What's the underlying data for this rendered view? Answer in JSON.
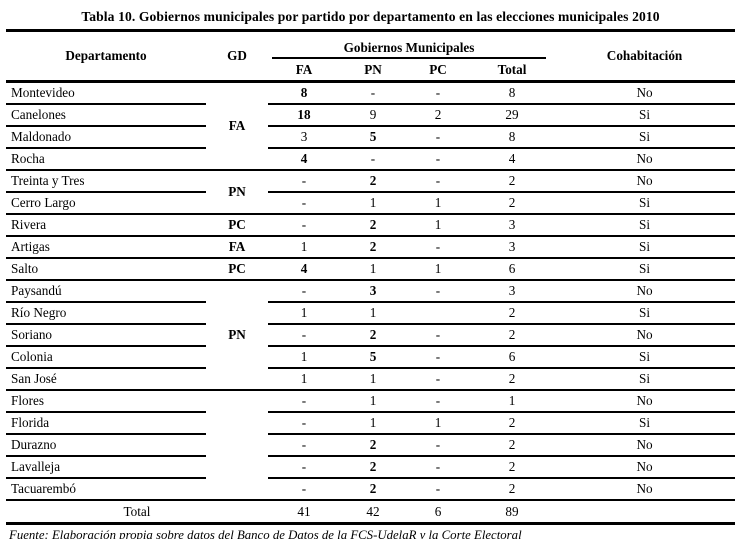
{
  "title": "Tabla 10. Gobiernos municipales por partido por departamento en las elecciones municipales 2010",
  "header": {
    "departamento": "Departamento",
    "gd": "GD",
    "gobiernos_municipales": "Gobiernos Municipales",
    "fa": "FA",
    "pn": "PN",
    "pc": "PC",
    "total": "Total",
    "cohabitacion": "Cohabitación"
  },
  "groups": [
    {
      "gd": "FA",
      "rows": [
        {
          "dep": "Montevideo",
          "fa": "8",
          "pn": "-",
          "pc": "-",
          "tot": "8",
          "coh": "No",
          "bold": "fa"
        },
        {
          "dep": "Canelones",
          "fa": "18",
          "pn": "9",
          "pc": "2",
          "tot": "29",
          "coh": "Si",
          "bold": "fa"
        },
        {
          "dep": "Maldonado",
          "fa": "3",
          "pn": "5",
          "pc": "-",
          "tot": "8",
          "coh": "Si",
          "bold": "pn"
        },
        {
          "dep": "Rocha",
          "fa": "4",
          "pn": "-",
          "pc": "-",
          "tot": "4",
          "coh": "No",
          "bold": "fa"
        }
      ]
    },
    {
      "gd": "PN",
      "rows": [
        {
          "dep": "Treinta y Tres",
          "fa": "-",
          "pn": "2",
          "pc": "-",
          "tot": "2",
          "coh": "No",
          "bold": "pn"
        },
        {
          "dep": "Cerro Largo",
          "fa": "-",
          "pn": "1",
          "pc": "1",
          "tot": "2",
          "coh": "Si",
          "bold": null
        }
      ]
    },
    {
      "gd": "PC",
      "rows": [
        {
          "dep": "Rivera",
          "fa": "-",
          "pn": "2",
          "pc": "1",
          "tot": "3",
          "coh": "Si",
          "bold": "pn"
        }
      ]
    },
    {
      "gd": "FA",
      "rows": [
        {
          "dep": "Artigas",
          "fa": "1",
          "pn": "2",
          "pc": "-",
          "tot": "3",
          "coh": "Si",
          "bold": "pn"
        }
      ]
    },
    {
      "gd": "PC",
      "rows": [
        {
          "dep": "Salto",
          "fa": "4",
          "pn": "1",
          "pc": "1",
          "tot": "6",
          "coh": "Si",
          "bold": "fa"
        }
      ]
    },
    {
      "gd": "PN",
      "rows": [
        {
          "dep": "Paysandú",
          "fa": "-",
          "pn": "3",
          "pc": "-",
          "tot": "3",
          "coh": "No",
          "bold": "pn"
        },
        {
          "dep": "Río Negro",
          "fa": "1",
          "pn": "1",
          "pc": "",
          "tot": "2",
          "coh": "Si",
          "bold": null
        },
        {
          "dep": "Soriano",
          "fa": "-",
          "pn": "2",
          "pc": "-",
          "tot": "2",
          "coh": "No",
          "bold": "pn"
        },
        {
          "dep": "Colonia",
          "fa": "1",
          "pn": "5",
          "pc": "-",
          "tot": "6",
          "coh": "Si",
          "bold": "pn"
        },
        {
          "dep": "San José",
          "fa": "1",
          "pn": "1",
          "pc": "-",
          "tot": "2",
          "coh": "Si",
          "bold": null
        }
      ]
    },
    {
      "gd": "",
      "rows": [
        {
          "dep": "Flores",
          "fa": "-",
          "pn": "1",
          "pc": "-",
          "tot": "1",
          "coh": "No",
          "bold": null
        },
        {
          "dep": "Florida",
          "fa": "-",
          "pn": "1",
          "pc": "1",
          "tot": "2",
          "coh": "Si",
          "bold": null
        },
        {
          "dep": "Durazno",
          "fa": "-",
          "pn": "2",
          "pc": "-",
          "tot": "2",
          "coh": "No",
          "bold": "pn"
        },
        {
          "dep": "Lavalleja",
          "fa": "-",
          "pn": "2",
          "pc": "-",
          "tot": "2",
          "coh": "No",
          "bold": "pn"
        },
        {
          "dep": "Tacuarembó",
          "fa": "-",
          "pn": "2",
          "pc": "-",
          "tot": "2",
          "coh": "No",
          "bold": "pn"
        }
      ]
    }
  ],
  "total_row": {
    "label": "Total",
    "fa": "41",
    "pn": "42",
    "pc": "6",
    "tot": "89",
    "coh": ""
  },
  "footer": "Fuente: Elaboración propia sobre datos del Banco de Datos de la FCS-UdelaR y la Corte Electoral"
}
